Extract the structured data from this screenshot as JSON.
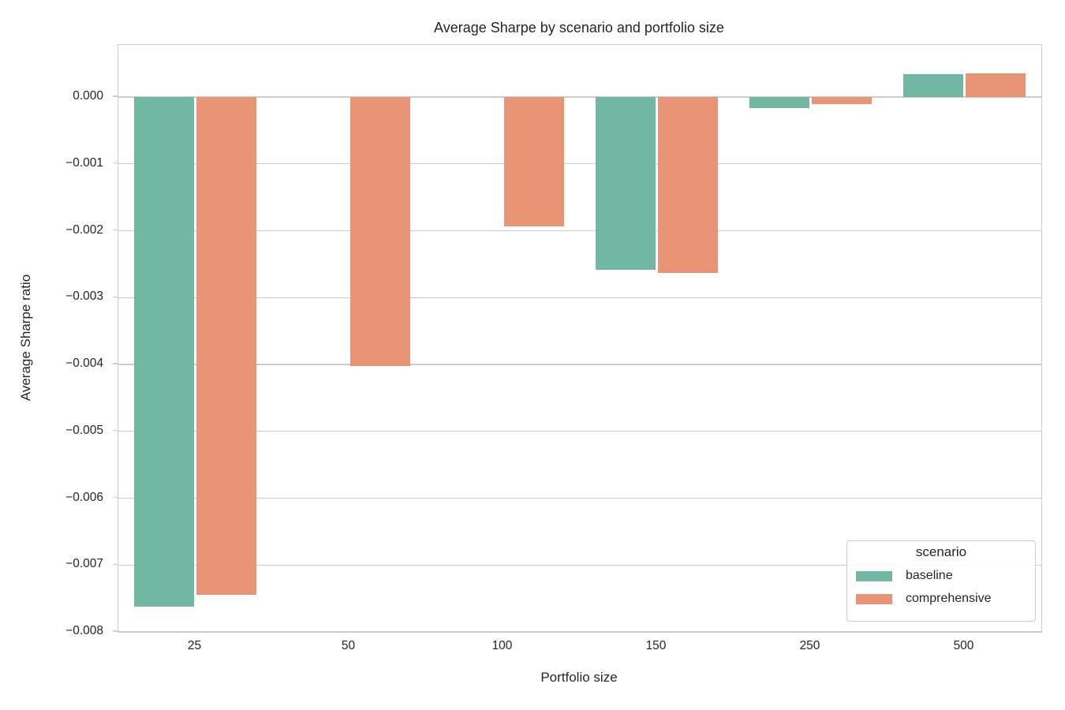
{
  "chart_data": {
    "type": "bar",
    "title": "Average Sharpe by scenario and portfolio size",
    "xlabel": "Portfolio size",
    "ylabel": "Average Sharpe ratio",
    "categories": [
      "25",
      "50",
      "100",
      "150",
      "250",
      "500"
    ],
    "series": [
      {
        "name": "baseline",
        "color": "#71b7a1",
        "values": [
          -0.00762,
          0.0,
          0.0,
          -0.00258,
          -0.00016,
          0.00034
        ]
      },
      {
        "name": "comprehensive",
        "color": "#e99575",
        "values": [
          -0.00744,
          -0.00402,
          -0.00194,
          -0.00263,
          -0.0001,
          0.00036
        ]
      }
    ],
    "ylim": [
      -0.008,
      0.00078
    ],
    "yticks": [
      0,
      -0.001,
      -0.002,
      -0.003,
      -0.004,
      -0.005,
      -0.006,
      -0.007,
      -0.008
    ],
    "ytick_labels": [
      "0.000",
      "−0.001",
      "−0.002",
      "−0.003",
      "−0.004",
      "−0.005",
      "−0.006",
      "−0.007",
      "−0.008"
    ],
    "grid": true,
    "legend": {
      "title": "scenario",
      "position": "lower right",
      "entries": [
        "baseline",
        "comprehensive"
      ]
    }
  },
  "colors": {
    "bar_baseline": "#71b7a1",
    "bar_comprehensive": "#e99575",
    "grid": "#cccccc",
    "spine": "#cccccc",
    "text": "#262626",
    "background": "#ffffff"
  }
}
